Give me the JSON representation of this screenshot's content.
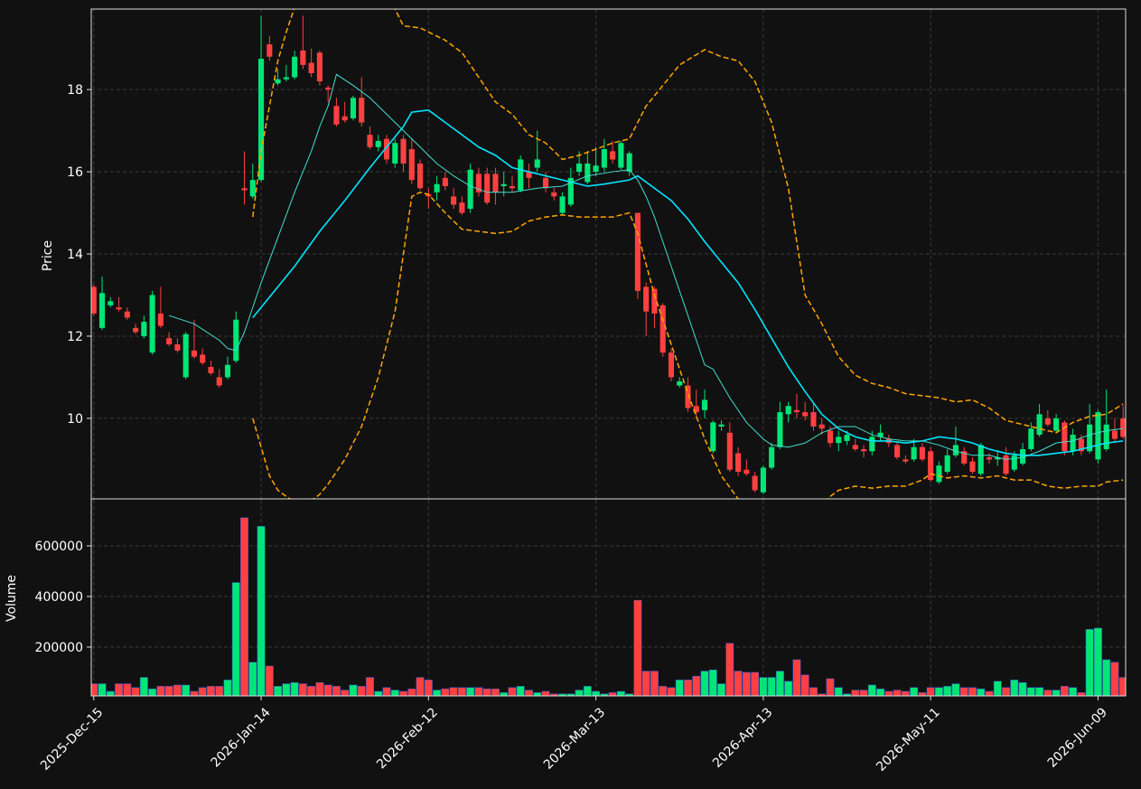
{
  "chart_data": {
    "type": "candlestick",
    "grid": true,
    "up_color": "#00e676",
    "down_color": "#ff4040",
    "xlim": [
      -0.3,
      123.3
    ],
    "xticks": [
      {
        "value": 0,
        "label": "2025-Dec-15"
      },
      {
        "value": 20,
        "label": "2026-Jan-14"
      },
      {
        "value": 40,
        "label": "2026-Feb-12"
      },
      {
        "value": 60,
        "label": "2026-Mar-13"
      },
      {
        "value": 80,
        "label": "2026-Apr-13"
      },
      {
        "value": 100,
        "label": "2026-May-11"
      },
      {
        "value": 120,
        "label": "2026-Jun-09"
      }
    ],
    "price": {
      "ylabel": "Price",
      "ylim": [
        8.04,
        19.96
      ],
      "yticks": [
        10,
        12,
        14,
        16,
        18
      ],
      "open": [
        13.2,
        12.2,
        12.75,
        12.7,
        12.6,
        12.2,
        12.0,
        11.6,
        12.55,
        11.95,
        11.8,
        11.0,
        11.65,
        11.55,
        11.25,
        11.0,
        11.0,
        11.4,
        15.6,
        15.4,
        15.8,
        19.1,
        18.15,
        18.25,
        18.3,
        18.95,
        18.65,
        18.9,
        18.05,
        17.6,
        17.35,
        17.3,
        17.8,
        16.9,
        16.6,
        16.8,
        16.2,
        16.8,
        16.55,
        16.2,
        15.45,
        15.5,
        15.85,
        15.4,
        15.25,
        15.1,
        15.95,
        15.95,
        15.95,
        15.65,
        15.65,
        15.55,
        16.0,
        16.1,
        15.85,
        15.5,
        15.0,
        15.2,
        16.0,
        15.75,
        16.0,
        16.1,
        16.5,
        16.1,
        16.0,
        15.0,
        13.2,
        13.15,
        12.75,
        11.6,
        10.8,
        10.8,
        10.3,
        10.2,
        9.2,
        9.8,
        9.65,
        9.15,
        8.75,
        8.6,
        8.2,
        8.8,
        9.3,
        10.1,
        10.2,
        10.15,
        10.15,
        9.85,
        9.7,
        9.4,
        9.45,
        9.35,
        9.25,
        9.2,
        9.55,
        9.5,
        9.35,
        9.0,
        9.0,
        9.3,
        9.2,
        8.45,
        8.7,
        9.1,
        9.2,
        8.95,
        8.65,
        9.05,
        9.0,
        9.1,
        8.75,
        8.9,
        9.25,
        9.6,
        10.0,
        9.7,
        9.9,
        9.2,
        9.5,
        9.2,
        9.0,
        9.25,
        9.7,
        10.0
      ],
      "high": [
        13.25,
        13.45,
        12.95,
        12.95,
        12.7,
        12.3,
        12.5,
        13.1,
        13.2,
        12.1,
        11.95,
        12.1,
        12.4,
        11.7,
        11.4,
        11.2,
        11.5,
        12.6,
        16.5,
        16.2,
        19.8,
        19.3,
        18.5,
        18.6,
        18.95,
        19.8,
        19.0,
        18.95,
        18.1,
        17.8,
        17.7,
        17.85,
        18.3,
        17.1,
        16.9,
        16.9,
        16.8,
        16.9,
        16.8,
        16.3,
        15.6,
        15.9,
        16.0,
        15.6,
        15.4,
        16.2,
        16.1,
        16.1,
        16.1,
        16.0,
        15.9,
        16.4,
        16.2,
        17.0,
        16.0,
        15.6,
        15.5,
        16.1,
        16.5,
        16.5,
        16.6,
        16.8,
        16.75,
        16.75,
        16.5,
        15.0,
        13.3,
        13.2,
        12.8,
        11.7,
        11.0,
        11.0,
        10.7,
        10.7,
        9.95,
        9.95,
        9.9,
        9.3,
        9.0,
        8.7,
        8.85,
        9.4,
        10.4,
        10.4,
        10.6,
        10.4,
        10.4,
        10.0,
        9.8,
        9.7,
        9.7,
        9.5,
        9.35,
        9.7,
        9.85,
        9.6,
        9.45,
        9.1,
        9.5,
        9.4,
        9.3,
        8.95,
        9.25,
        9.8,
        9.3,
        9.05,
        9.4,
        9.15,
        9.2,
        9.3,
        9.2,
        9.4,
        9.9,
        10.35,
        10.2,
        10.1,
        9.95,
        9.75,
        9.6,
        10.35,
        10.2,
        10.7,
        10.0,
        10.3
      ],
      "low": [
        12.5,
        12.15,
        12.7,
        12.6,
        12.4,
        12.05,
        11.95,
        11.55,
        12.2,
        11.75,
        11.6,
        10.95,
        11.45,
        11.3,
        11.05,
        10.75,
        10.95,
        11.35,
        15.2,
        15.35,
        15.75,
        18.7,
        18.1,
        18.2,
        18.25,
        18.5,
        18.3,
        18.1,
        17.7,
        17.1,
        17.2,
        17.25,
        17.1,
        16.55,
        16.5,
        16.2,
        16.1,
        16.0,
        15.7,
        15.55,
        15.1,
        15.3,
        15.55,
        15.1,
        14.95,
        15.0,
        15.4,
        15.2,
        15.2,
        15.4,
        15.5,
        15.5,
        15.6,
        16.0,
        15.5,
        15.3,
        14.95,
        15.15,
        15.9,
        15.7,
        15.9,
        16.0,
        16.2,
        16.05,
        15.9,
        12.9,
        12.0,
        12.2,
        11.5,
        10.9,
        10.75,
        10.15,
        10.0,
        10.0,
        9.15,
        9.7,
        8.7,
        8.6,
        8.6,
        8.2,
        8.15,
        8.75,
        9.25,
        9.9,
        10.0,
        9.95,
        9.7,
        9.6,
        9.3,
        9.2,
        9.35,
        9.2,
        9.05,
        9.1,
        9.45,
        9.3,
        9.0,
        8.9,
        8.95,
        8.95,
        8.45,
        8.4,
        8.65,
        9.05,
        8.85,
        8.65,
        8.6,
        8.9,
        8.85,
        8.6,
        8.7,
        8.85,
        9.2,
        9.55,
        9.8,
        9.65,
        9.1,
        9.1,
        9.1,
        9.15,
        8.9,
        9.2,
        9.4,
        9.5
      ],
      "close": [
        12.55,
        13.05,
        12.85,
        12.65,
        12.45,
        12.1,
        12.35,
        13.0,
        12.25,
        11.8,
        11.65,
        12.05,
        11.5,
        11.35,
        11.1,
        10.8,
        11.3,
        12.4,
        15.55,
        15.8,
        18.75,
        18.8,
        18.25,
        18.3,
        18.8,
        18.6,
        18.4,
        18.2,
        18.0,
        17.15,
        17.25,
        17.8,
        17.2,
        16.6,
        16.75,
        16.3,
        16.7,
        16.2,
        15.8,
        15.6,
        15.4,
        15.7,
        15.65,
        15.2,
        15.0,
        16.05,
        15.5,
        15.25,
        15.5,
        15.7,
        15.6,
        16.3,
        15.85,
        16.3,
        15.6,
        15.4,
        15.4,
        15.85,
        16.2,
        16.2,
        16.15,
        16.55,
        16.3,
        16.7,
        16.45,
        13.1,
        12.6,
        12.55,
        11.6,
        11.0,
        10.9,
        10.25,
        10.15,
        10.45,
        9.9,
        9.85,
        8.75,
        8.7,
        8.65,
        8.25,
        8.8,
        9.3,
        10.15,
        10.3,
        10.15,
        10.05,
        9.8,
        9.75,
        9.4,
        9.55,
        9.6,
        9.25,
        9.2,
        9.55,
        9.65,
        9.4,
        9.05,
        8.95,
        9.3,
        9.0,
        8.5,
        8.85,
        9.1,
        9.35,
        8.9,
        8.7,
        9.35,
        9.0,
        9.05,
        8.65,
        9.1,
        9.25,
        9.75,
        10.1,
        9.85,
        10.0,
        9.2,
        9.6,
        9.2,
        9.85,
        10.15,
        9.85,
        9.5,
        9.55
      ],
      "lines": [
        {
          "color": "#00e5ff",
          "width": 1.6,
          "dashed": false,
          "x": [
            19,
            22,
            24,
            27,
            30,
            33,
            35,
            37,
            38,
            40,
            42,
            44,
            46,
            48,
            50,
            53,
            56,
            59,
            61,
            64,
            65,
            67,
            69,
            71,
            73,
            75,
            77,
            79,
            81,
            83,
            85,
            87,
            89,
            91,
            93,
            95,
            97,
            99,
            101,
            103,
            105,
            107,
            109,
            111,
            113,
            115,
            117,
            119,
            121,
            123
          ],
          "values": [
            12.45,
            13.2,
            13.7,
            14.55,
            15.3,
            16.1,
            16.6,
            17.1,
            17.45,
            17.5,
            17.2,
            16.9,
            16.6,
            16.4,
            16.1,
            15.95,
            15.8,
            15.65,
            15.7,
            15.8,
            15.9,
            15.6,
            15.3,
            14.85,
            14.3,
            13.8,
            13.3,
            12.65,
            11.95,
            11.25,
            10.65,
            10.1,
            9.75,
            9.55,
            9.45,
            9.45,
            9.4,
            9.45,
            9.55,
            9.5,
            9.4,
            9.25,
            9.15,
            9.1,
            9.1,
            9.15,
            9.2,
            9.3,
            9.4,
            9.45
          ]
        },
        {
          "color": "#40e0d0",
          "width": 1,
          "dashed": false,
          "x": [
            9,
            12,
            15,
            16,
            17,
            18,
            19,
            20,
            22,
            24,
            26,
            27,
            28,
            29,
            31,
            33,
            35,
            37,
            39,
            41,
            43,
            45,
            47,
            50,
            53,
            56,
            59,
            62,
            64,
            65,
            66,
            67,
            68,
            70,
            72,
            73,
            74,
            76,
            78,
            80,
            81,
            83,
            85,
            87,
            89,
            91,
            93,
            95,
            97,
            99,
            101,
            103,
            105,
            107,
            109,
            111,
            113,
            115,
            117,
            119,
            121,
            123
          ],
          "values": [
            12.5,
            12.3,
            11.9,
            11.7,
            11.65,
            12.1,
            12.7,
            13.3,
            14.4,
            15.5,
            16.5,
            17.1,
            17.6,
            18.37,
            18.1,
            17.8,
            17.4,
            17.0,
            16.6,
            16.2,
            15.9,
            15.65,
            15.5,
            15.5,
            15.6,
            15.65,
            15.9,
            16.0,
            16.05,
            15.8,
            15.4,
            14.9,
            14.3,
            13.1,
            11.9,
            11.3,
            11.2,
            10.5,
            9.9,
            9.5,
            9.35,
            9.3,
            9.4,
            9.65,
            9.8,
            9.8,
            9.6,
            9.5,
            9.45,
            9.45,
            9.35,
            9.2,
            9.1,
            9.1,
            9.0,
            9.05,
            9.2,
            9.4,
            9.45,
            9.6,
            9.7,
            9.75
          ]
        },
        {
          "color": "#ffa500",
          "width": 1.5,
          "dashed": true,
          "x": [
            19,
            20,
            21,
            22,
            23,
            24,
            25,
            30,
            35,
            36,
            37,
            39,
            40,
            42,
            44,
            46,
            48,
            50,
            52,
            54,
            56,
            58,
            60,
            62,
            64,
            66,
            68,
            70,
            72,
            73,
            75,
            77,
            79,
            81,
            83,
            85,
            87,
            89,
            91,
            93,
            95,
            97,
            99,
            101,
            103,
            105,
            107,
            109,
            111,
            113,
            115,
            117,
            119,
            121,
            123
          ],
          "values": [
            14.9,
            16.5,
            17.6,
            18.7,
            19.4,
            20.0,
            20.6,
            21.5,
            20.5,
            19.96,
            19.55,
            19.5,
            19.4,
            19.2,
            18.9,
            18.3,
            17.7,
            17.4,
            16.9,
            16.7,
            16.3,
            16.4,
            16.55,
            16.7,
            16.8,
            17.6,
            18.1,
            18.6,
            18.85,
            18.97,
            18.8,
            18.7,
            18.2,
            17.2,
            15.6,
            13.0,
            12.3,
            11.5,
            11.05,
            10.85,
            10.75,
            10.6,
            10.55,
            10.5,
            10.4,
            10.45,
            10.25,
            9.95,
            9.85,
            9.75,
            9.65,
            9.9,
            10.05,
            10.1,
            10.35
          ]
        },
        {
          "color": "#ffa500",
          "width": 1.5,
          "dashed": true,
          "x": [
            19,
            20,
            21,
            22,
            23,
            24,
            25,
            26,
            27,
            28,
            30,
            32,
            34,
            36,
            37,
            38,
            39,
            40,
            42,
            44,
            46,
            48,
            50,
            52,
            54,
            56,
            58,
            60,
            62,
            64,
            65,
            67,
            69,
            71,
            73,
            75,
            77,
            78,
            82,
            86,
            87,
            88,
            89,
            91,
            93,
            95,
            97,
            99,
            100,
            102,
            104,
            106,
            108,
            110,
            112,
            114,
            116,
            118,
            120,
            121,
            123
          ],
          "values": [
            10.0,
            9.3,
            8.6,
            8.25,
            8.1,
            7.96,
            7.9,
            8.0,
            8.15,
            8.4,
            9.0,
            9.8,
            11.0,
            12.6,
            14.0,
            15.4,
            15.5,
            15.45,
            15.0,
            14.6,
            14.55,
            14.5,
            14.55,
            14.8,
            14.9,
            14.95,
            14.9,
            14.9,
            14.9,
            15.0,
            14.5,
            13.0,
            11.8,
            10.6,
            9.5,
            8.6,
            8.04,
            7.6,
            6.5,
            7.5,
            7.9,
            8.1,
            8.25,
            8.35,
            8.3,
            8.35,
            8.35,
            8.5,
            8.65,
            8.55,
            8.6,
            8.55,
            8.6,
            8.5,
            8.5,
            8.35,
            8.3,
            8.35,
            8.35,
            8.45,
            8.5
          ]
        }
      ]
    },
    "volume": {
      "ylabel": "Volume",
      "ylim": [
        7000,
        782000
      ],
      "yticks": [
        200000,
        400000,
        600000
      ],
      "values": [
        55000,
        55000,
        25000,
        55000,
        55000,
        40000,
        80000,
        35000,
        45000,
        45000,
        50000,
        50000,
        25000,
        40000,
        45000,
        45000,
        70000,
        455000,
        711000,
        140000,
        677000,
        125000,
        45000,
        55000,
        60000,
        55000,
        45000,
        60000,
        50000,
        45000,
        30000,
        50000,
        45000,
        80000,
        25000,
        40000,
        30000,
        25000,
        35000,
        80000,
        70000,
        30000,
        35000,
        40000,
        40000,
        40000,
        40000,
        35000,
        35000,
        20000,
        40000,
        45000,
        30000,
        20000,
        25000,
        15000,
        15000,
        15000,
        30000,
        45000,
        25000,
        15000,
        20000,
        25000,
        15000,
        385000,
        105000,
        105000,
        45000,
        40000,
        70000,
        70000,
        85000,
        105000,
        110000,
        55000,
        215000,
        105000,
        100000,
        100000,
        80000,
        80000,
        105000,
        65000,
        150000,
        90000,
        40000,
        15000,
        75000,
        40000,
        15000,
        30000,
        30000,
        50000,
        35000,
        25000,
        30000,
        25000,
        40000,
        20000,
        40000,
        40000,
        45000,
        55000,
        40000,
        40000,
        35000,
        25000,
        65000,
        40000,
        70000,
        60000,
        40000,
        40000,
        30000,
        30000,
        45000,
        40000,
        20000,
        270000,
        275000,
        150000,
        140000,
        80000
      ]
    }
  }
}
